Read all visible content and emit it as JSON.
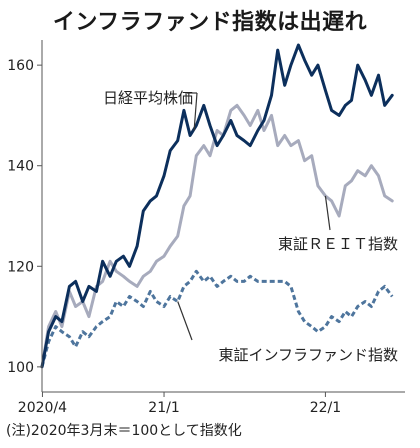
{
  "chart_data": {
    "type": "line",
    "title": "インフラファンド指数は出遅れ",
    "note": "(注)2020年3月末＝100として指数化",
    "xlim": [
      "2020-03-31",
      "2022-06-30"
    ],
    "ylim": [
      95,
      165
    ],
    "x_ticks": [
      {
        "date": "2020-04-01",
        "label": "2020/4"
      },
      {
        "date": "2021-01-01",
        "label": "21/1"
      },
      {
        "date": "2022-01-01",
        "label": "22/1"
      }
    ],
    "y_ticks": [
      100,
      120,
      140,
      160
    ],
    "grid": false,
    "colors": {
      "nikkei": "#0c2f5c",
      "reit": "#a7abbd",
      "infra": "#4e759d",
      "axis": "#555555"
    },
    "series": [
      {
        "key": "reit",
        "name": "東証ＲＥＩＴ指数",
        "style": "solid",
        "points": [
          [
            "2020-03-31",
            100
          ],
          [
            "2020-04-15",
            108
          ],
          [
            "2020-05-01",
            111
          ],
          [
            "2020-05-15",
            108
          ],
          [
            "2020-06-01",
            115
          ],
          [
            "2020-06-15",
            112
          ],
          [
            "2020-07-01",
            113
          ],
          [
            "2020-07-15",
            110
          ],
          [
            "2020-08-01",
            116
          ],
          [
            "2020-08-15",
            117
          ],
          [
            "2020-09-01",
            121
          ],
          [
            "2020-09-15",
            119
          ],
          [
            "2020-10-01",
            118
          ],
          [
            "2020-10-15",
            117
          ],
          [
            "2020-11-01",
            116
          ],
          [
            "2020-11-15",
            118
          ],
          [
            "2020-12-01",
            119
          ],
          [
            "2020-12-15",
            121
          ],
          [
            "2021-01-01",
            122
          ],
          [
            "2021-01-15",
            124
          ],
          [
            "2021-02-01",
            126
          ],
          [
            "2021-02-15",
            132
          ],
          [
            "2021-03-01",
            134
          ],
          [
            "2021-03-15",
            142
          ],
          [
            "2021-04-01",
            144
          ],
          [
            "2021-04-15",
            142
          ],
          [
            "2021-05-01",
            147
          ],
          [
            "2021-05-15",
            146
          ],
          [
            "2021-06-01",
            151
          ],
          [
            "2021-06-15",
            152
          ],
          [
            "2021-07-01",
            150
          ],
          [
            "2021-07-15",
            148
          ],
          [
            "2021-08-01",
            151
          ],
          [
            "2021-08-15",
            147
          ],
          [
            "2021-09-01",
            150
          ],
          [
            "2021-09-15",
            144
          ],
          [
            "2021-10-01",
            146
          ],
          [
            "2021-10-15",
            144
          ],
          [
            "2021-11-01",
            145
          ],
          [
            "2021-11-15",
            141
          ],
          [
            "2021-12-01",
            142
          ],
          [
            "2021-12-15",
            136
          ],
          [
            "2022-01-01",
            134
          ],
          [
            "2022-01-15",
            133
          ],
          [
            "2022-02-01",
            130
          ],
          [
            "2022-02-15",
            136
          ],
          [
            "2022-03-01",
            137
          ],
          [
            "2022-03-15",
            139
          ],
          [
            "2022-04-01",
            138
          ],
          [
            "2022-04-15",
            140
          ],
          [
            "2022-05-01",
            138
          ],
          [
            "2022-05-15",
            134
          ],
          [
            "2022-06-01",
            133
          ]
        ]
      },
      {
        "key": "infra",
        "name": "東証インフラファンド指数",
        "style": "dashed",
        "points": [
          [
            "2020-03-31",
            100
          ],
          [
            "2020-04-15",
            105
          ],
          [
            "2020-05-01",
            108
          ],
          [
            "2020-05-15",
            107
          ],
          [
            "2020-06-01",
            106
          ],
          [
            "2020-06-15",
            104
          ],
          [
            "2020-07-01",
            107
          ],
          [
            "2020-07-15",
            106
          ],
          [
            "2020-08-01",
            108
          ],
          [
            "2020-08-15",
            109
          ],
          [
            "2020-09-01",
            110
          ],
          [
            "2020-09-15",
            113
          ],
          [
            "2020-10-01",
            112
          ],
          [
            "2020-10-15",
            114
          ],
          [
            "2020-11-01",
            113
          ],
          [
            "2020-11-15",
            112
          ],
          [
            "2020-12-01",
            115
          ],
          [
            "2020-12-15",
            113
          ],
          [
            "2021-01-01",
            112
          ],
          [
            "2021-01-15",
            114
          ],
          [
            "2021-02-01",
            113
          ],
          [
            "2021-02-15",
            116
          ],
          [
            "2021-03-01",
            117
          ],
          [
            "2021-03-15",
            119
          ],
          [
            "2021-04-01",
            117
          ],
          [
            "2021-04-15",
            118
          ],
          [
            "2021-05-01",
            116
          ],
          [
            "2021-05-15",
            117
          ],
          [
            "2021-06-01",
            118
          ],
          [
            "2021-06-15",
            117
          ],
          [
            "2021-07-01",
            117
          ],
          [
            "2021-07-15",
            118
          ],
          [
            "2021-08-01",
            117
          ],
          [
            "2021-08-15",
            117
          ],
          [
            "2021-09-01",
            117
          ],
          [
            "2021-09-15",
            117
          ],
          [
            "2021-10-01",
            117
          ],
          [
            "2021-10-15",
            116
          ],
          [
            "2021-11-01",
            111
          ],
          [
            "2021-11-15",
            109
          ],
          [
            "2021-12-01",
            108
          ],
          [
            "2021-12-15",
            107
          ],
          [
            "2022-01-01",
            108
          ],
          [
            "2022-01-15",
            110
          ],
          [
            "2022-02-01",
            109
          ],
          [
            "2022-02-15",
            111
          ],
          [
            "2022-03-01",
            110
          ],
          [
            "2022-03-15",
            112
          ],
          [
            "2022-04-01",
            113
          ],
          [
            "2022-04-15",
            112
          ],
          [
            "2022-05-01",
            115
          ],
          [
            "2022-05-15",
            116
          ],
          [
            "2022-06-01",
            114
          ]
        ]
      },
      {
        "key": "nikkei",
        "name": "日経平均株価",
        "style": "solid",
        "points": [
          [
            "2020-03-31",
            100
          ],
          [
            "2020-04-15",
            107
          ],
          [
            "2020-05-01",
            110
          ],
          [
            "2020-05-15",
            109
          ],
          [
            "2020-06-01",
            116
          ],
          [
            "2020-06-15",
            117
          ],
          [
            "2020-07-01",
            113
          ],
          [
            "2020-07-15",
            116
          ],
          [
            "2020-08-01",
            115
          ],
          [
            "2020-08-15",
            121
          ],
          [
            "2020-09-01",
            118
          ],
          [
            "2020-09-15",
            121
          ],
          [
            "2020-10-01",
            122
          ],
          [
            "2020-10-15",
            120
          ],
          [
            "2020-11-01",
            124
          ],
          [
            "2020-11-15",
            131
          ],
          [
            "2020-12-01",
            133
          ],
          [
            "2020-12-15",
            134
          ],
          [
            "2021-01-01",
            138
          ],
          [
            "2021-01-15",
            143
          ],
          [
            "2021-02-01",
            145
          ],
          [
            "2021-02-15",
            151
          ],
          [
            "2021-03-01",
            146
          ],
          [
            "2021-03-15",
            148
          ],
          [
            "2021-04-01",
            152
          ],
          [
            "2021-04-15",
            148
          ],
          [
            "2021-05-01",
            144
          ],
          [
            "2021-05-15",
            146
          ],
          [
            "2021-06-01",
            149
          ],
          [
            "2021-06-15",
            146
          ],
          [
            "2021-07-01",
            145
          ],
          [
            "2021-07-15",
            144
          ],
          [
            "2021-08-01",
            147
          ],
          [
            "2021-08-15",
            149
          ],
          [
            "2021-09-01",
            154
          ],
          [
            "2021-09-15",
            163
          ],
          [
            "2021-10-01",
            156
          ],
          [
            "2021-10-15",
            160
          ],
          [
            "2021-11-01",
            164
          ],
          [
            "2021-11-15",
            161
          ],
          [
            "2021-12-01",
            158
          ],
          [
            "2021-12-15",
            160
          ],
          [
            "2022-01-01",
            155
          ],
          [
            "2022-01-15",
            151
          ],
          [
            "2022-02-01",
            150
          ],
          [
            "2022-02-15",
            152
          ],
          [
            "2022-03-01",
            153
          ],
          [
            "2022-03-15",
            160
          ],
          [
            "2022-04-01",
            157
          ],
          [
            "2022-04-15",
            154
          ],
          [
            "2022-05-01",
            158
          ],
          [
            "2022-05-15",
            152
          ],
          [
            "2022-06-01",
            154
          ]
        ]
      }
    ]
  }
}
